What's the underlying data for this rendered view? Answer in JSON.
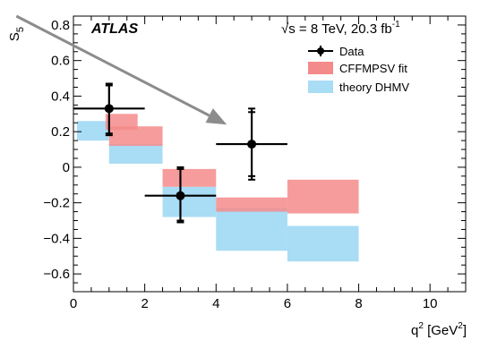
{
  "chart_data": {
    "type": "scatter",
    "experiment": "ATLAS",
    "energy_text": "√s = 8 TeV, 20.3 fb",
    "energy_sup": "-1",
    "ylabel_main": "S",
    "ylabel_sub": "5",
    "xlabel_main": "q",
    "xlabel_sup": "2",
    "xlabel_unit_open": " [GeV",
    "xlabel_unit_sup": "2",
    "xlabel_unit_close": "]",
    "xlim": [
      0,
      11
    ],
    "ylim": [
      -0.7,
      0.85
    ],
    "x_ticks": [
      {
        "v": 0,
        "label": "0"
      },
      {
        "v": 2,
        "label": "2"
      },
      {
        "v": 4,
        "label": "4"
      },
      {
        "v": 6,
        "label": "6"
      },
      {
        "v": 8,
        "label": "8"
      },
      {
        "v": 10,
        "label": "10"
      }
    ],
    "y_ticks": [
      {
        "v": -0.6,
        "label": "−0.6"
      },
      {
        "v": -0.4,
        "label": "−0.4"
      },
      {
        "v": -0.2,
        "label": "−0.2"
      },
      {
        "v": 0,
        "label": "0"
      },
      {
        "v": 0.2,
        "label": "0.2"
      },
      {
        "v": 0.4,
        "label": "0.4"
      },
      {
        "v": 0.6,
        "label": "0.6"
      },
      {
        "v": 0.8,
        "label": "0.8"
      }
    ],
    "legend": {
      "placement": "top-right",
      "entries": [
        {
          "key": "data",
          "label": "Data"
        },
        {
          "key": "fit",
          "label": "CFFMPSV fit"
        },
        {
          "key": "theory",
          "label": "theory DHMV"
        }
      ]
    },
    "colors": {
      "data": "#000000",
      "fit": "#f48b8b",
      "theory": "#a9dcf5",
      "arrow": "#8c8c8c"
    },
    "series": [
      {
        "name": "Data",
        "points": [
          {
            "x": 1.0,
            "xlo": 0.0,
            "xhi": 2.0,
            "y": 0.33,
            "y_stat_lo": 0.19,
            "y_stat_hi": 0.46,
            "y_tot_lo": 0.18,
            "y_tot_hi": 0.47
          },
          {
            "x": 3.0,
            "xlo": 2.0,
            "xhi": 4.0,
            "y": -0.16,
            "y_stat_lo": -0.3,
            "y_stat_hi": -0.01,
            "y_tot_lo": -0.31,
            "y_tot_hi": 0.0
          },
          {
            "x": 5.0,
            "xlo": 4.0,
            "xhi": 6.0,
            "y": 0.13,
            "y_stat_lo": -0.05,
            "y_stat_hi": 0.31,
            "y_tot_lo": -0.07,
            "y_tot_hi": 0.33
          }
        ]
      },
      {
        "name": "CFFMPSV fit",
        "bands": [
          {
            "x0": 0.9,
            "x1": 1.8,
            "y0": 0.21,
            "y1": 0.3
          },
          {
            "x0": 1.0,
            "x1": 2.5,
            "y0": 0.12,
            "y1": 0.23
          },
          {
            "x0": 2.5,
            "x1": 4.0,
            "y0": -0.11,
            "y1": -0.01
          },
          {
            "x0": 4.0,
            "x1": 6.0,
            "y0": -0.25,
            "y1": -0.17
          },
          {
            "x0": 6.0,
            "x1": 8.0,
            "y0": -0.26,
            "y1": -0.07
          }
        ]
      },
      {
        "name": "theory DHMV",
        "bands": [
          {
            "x0": 0.1,
            "x1": 1.0,
            "y0": 0.15,
            "y1": 0.26
          },
          {
            "x0": 1.0,
            "x1": 2.5,
            "y0": 0.02,
            "y1": 0.13
          },
          {
            "x0": 2.5,
            "x1": 4.0,
            "y0": -0.28,
            "y1": -0.11
          },
          {
            "x0": 4.0,
            "x1": 6.0,
            "y0": -0.47,
            "y1": -0.23
          },
          {
            "x0": 6.0,
            "x1": 8.0,
            "y0": -0.53,
            "y1": -0.33
          }
        ]
      }
    ],
    "annotation_arrow": {
      "x_start": -1.6,
      "y_start": 0.85,
      "x_end": 4.3,
      "y_end": 0.24
    }
  }
}
